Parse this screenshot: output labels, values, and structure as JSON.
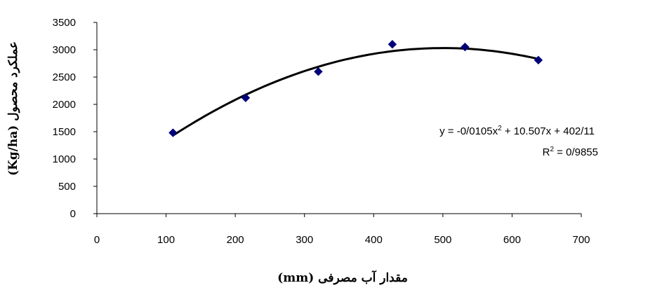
{
  "chart_data": {
    "type": "scatter",
    "xlabel": "مقدار آب مصرفی (mm)",
    "ylabel": "عملکرد محصول (Kg/ha)",
    "xlim": [
      0,
      700
    ],
    "ylim": [
      0,
      3500
    ],
    "x_ticks": [
      "0",
      "100",
      "200",
      "300",
      "400",
      "500",
      "600",
      "700"
    ],
    "y_ticks": [
      "0",
      "500",
      "1000",
      "1500",
      "2000",
      "2500",
      "3000",
      "3500"
    ],
    "grid": false,
    "legend": "none",
    "series": [
      {
        "marker": "diamond",
        "color": "#00007a",
        "x": [
          110,
          215,
          320,
          427,
          532,
          638
        ],
        "y": [
          1480,
          2120,
          2600,
          3100,
          3050,
          2810
        ]
      }
    ],
    "trendline": {
      "type": "polynomial-2",
      "coefficients": {
        "a": -0.0105,
        "b": 10.507,
        "c": 402.11
      },
      "x_range": [
        110,
        638
      ],
      "color": "#000000"
    },
    "annotations": {
      "equation_prefix": "y = -0/0105x",
      "equation_exp": "2",
      "equation_suffix": " + 10.507x + 402/11",
      "r2_prefix": "R",
      "r2_exp": "2",
      "r2_suffix": " = 0/9855"
    }
  }
}
